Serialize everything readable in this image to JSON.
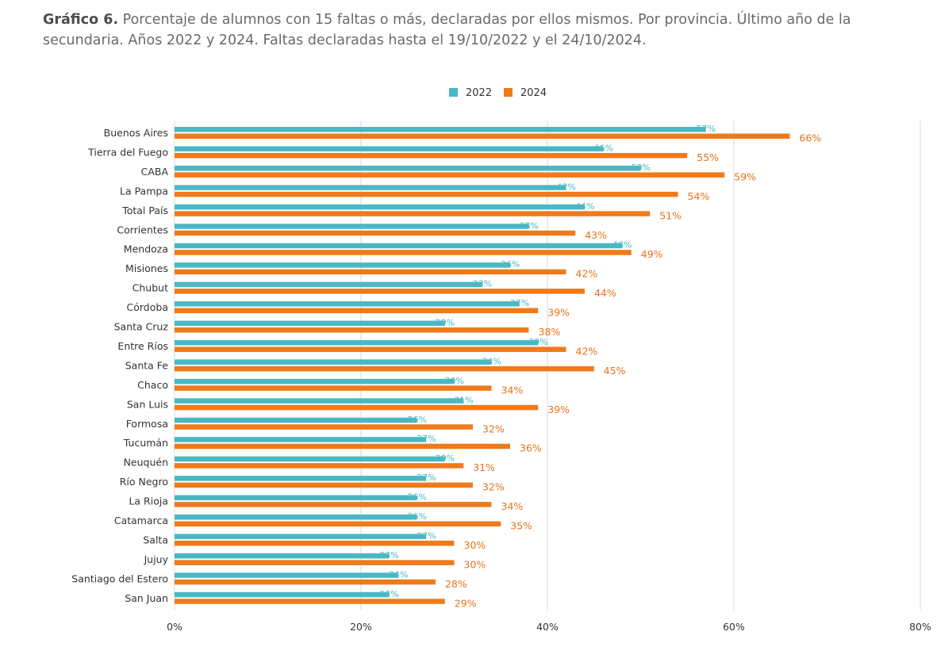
{
  "header": {
    "title_bold": "Gráfico 6.",
    "title_text": " Porcentaje de alumnos con 15 faltas o más, declaradas por ellos mismos. Por provincia. Último año de la secundaria. Años 2022 y 2024. Faltas declaradas hasta el 19/10/2022 y el 24/10/2024."
  },
  "chart_data": {
    "type": "bar",
    "orientation": "horizontal",
    "title": "Gráfico 6. Porcentaje de alumnos con 15 faltas o más, declaradas por ellos mismos. Por provincia. Último año de la secundaria. Años 2022 y 2024. Faltas declaradas hasta el 19/10/2022 y el 24/10/2024.",
    "xlabel": "",
    "ylabel": "",
    "categories": [
      "Buenos Aires",
      "Tierra del Fuego",
      "CABA",
      "La Pampa",
      "Total País",
      "Corrientes",
      "Mendoza",
      "Misiones",
      "Chubut",
      "Córdoba",
      "Santa Cruz",
      "Entre Ríos",
      "Santa Fe",
      "Chaco",
      "San Luis",
      "Formosa",
      "Tucumán",
      "Neuquén",
      "Río Negro",
      "La Rioja",
      "Catamarca",
      "Salta",
      "Jujuy",
      "Santiago del Estero",
      "San Juan"
    ],
    "series": [
      {
        "name": "2022",
        "color": "#4ab8c4",
        "values": [
          57,
          46,
          50,
          42,
          44,
          38,
          48,
          36,
          33,
          37,
          29,
          39,
          34,
          30,
          31,
          26,
          27,
          29,
          27,
          26,
          26,
          27,
          23,
          24,
          23
        ]
      },
      {
        "name": "2024",
        "color": "#f07a1a",
        "values": [
          66,
          55,
          59,
          54,
          51,
          43,
          49,
          42,
          44,
          39,
          38,
          42,
          45,
          34,
          39,
          32,
          36,
          31,
          32,
          34,
          35,
          30,
          30,
          28,
          29
        ]
      }
    ],
    "data_labels": {
      "2022": [
        "57%",
        "46%",
        "50%",
        "42%",
        "44%",
        "38%",
        "48%",
        "36%",
        "33%",
        "37%",
        "29%",
        "39%",
        "34%",
        "30%",
        "31%",
        "26%",
        "27%",
        "29%",
        "27%",
        "26%",
        "26%",
        "27%",
        "23%",
        "24%",
        "23%"
      ],
      "2024": [
        "66%",
        "55%",
        "59%",
        "54%",
        "51%",
        "43%",
        "49%",
        "42%",
        "44%",
        "39%",
        "38%",
        "42%",
        "45%",
        "34%",
        "39%",
        "32%",
        "36%",
        "31%",
        "32%",
        "34%",
        "35%",
        "30%",
        "30%",
        "28%",
        "29%"
      ]
    },
    "xlim": [
      0,
      80
    ],
    "x_ticks": [
      0,
      20,
      40,
      60,
      80
    ],
    "x_tick_labels": [
      "0%",
      "20%",
      "40%",
      "60%",
      "80%"
    ],
    "grid": "vertical",
    "legend_position": "top-center"
  }
}
